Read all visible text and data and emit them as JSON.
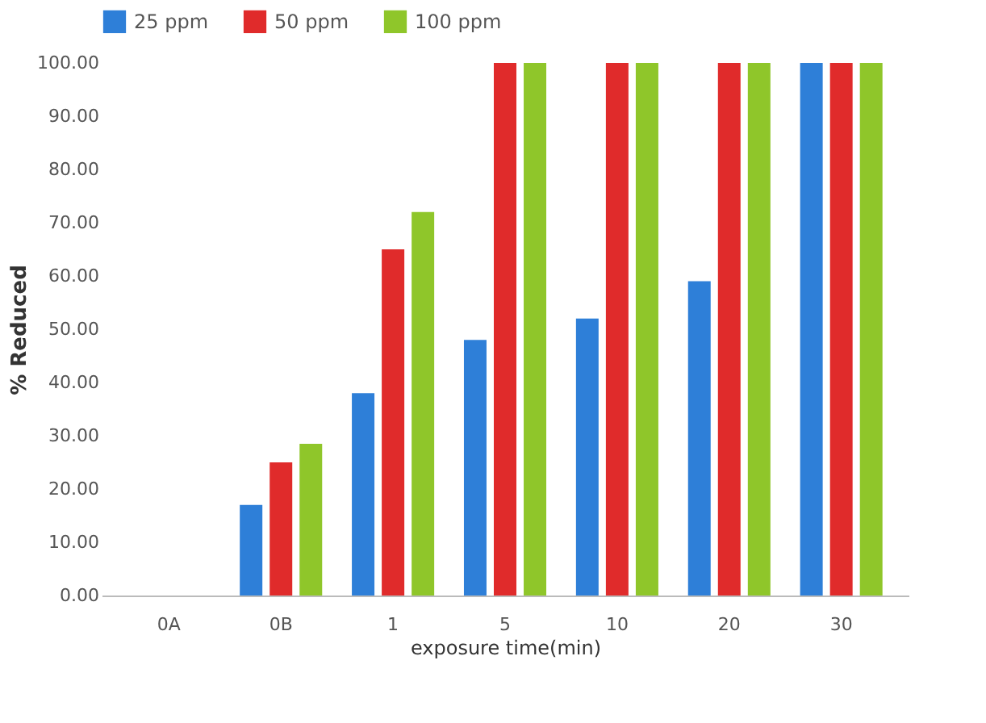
{
  "chart_data": {
    "type": "bar",
    "xlabel": "exposure time(min)",
    "ylabel": "% Reduced",
    "categories": [
      "0A",
      "0B",
      "1",
      "5",
      "10",
      "20",
      "30"
    ],
    "series": [
      {
        "name": "25 ppm",
        "color": "#2e7fd8",
        "values": [
          0,
          17,
          38,
          48,
          52,
          59,
          100
        ]
      },
      {
        "name": "50 ppm",
        "color": "#e02b2b",
        "values": [
          0,
          25,
          65,
          100,
          100,
          100,
          100
        ]
      },
      {
        "name": "100 ppm",
        "color": "#8fc62a",
        "values": [
          0,
          28.5,
          72,
          100,
          100,
          100,
          100
        ]
      }
    ],
    "ylim": [
      0,
      100
    ],
    "yticks": [
      {
        "value": 0,
        "label": "0.00"
      },
      {
        "value": 10,
        "label": "10.00"
      },
      {
        "value": 20,
        "label": "20.00"
      },
      {
        "value": 30,
        "label": "30.00"
      },
      {
        "value": 40,
        "label": "40.00"
      },
      {
        "value": 50,
        "label": "50.00"
      },
      {
        "value": 60,
        "label": "60.00"
      },
      {
        "value": 70,
        "label": "70.00"
      },
      {
        "value": 80,
        "label": "80.00"
      },
      {
        "value": 90,
        "label": "90.00"
      },
      {
        "value": 100,
        "label": "100.00"
      }
    ],
    "legend": "top",
    "grid": false
  }
}
